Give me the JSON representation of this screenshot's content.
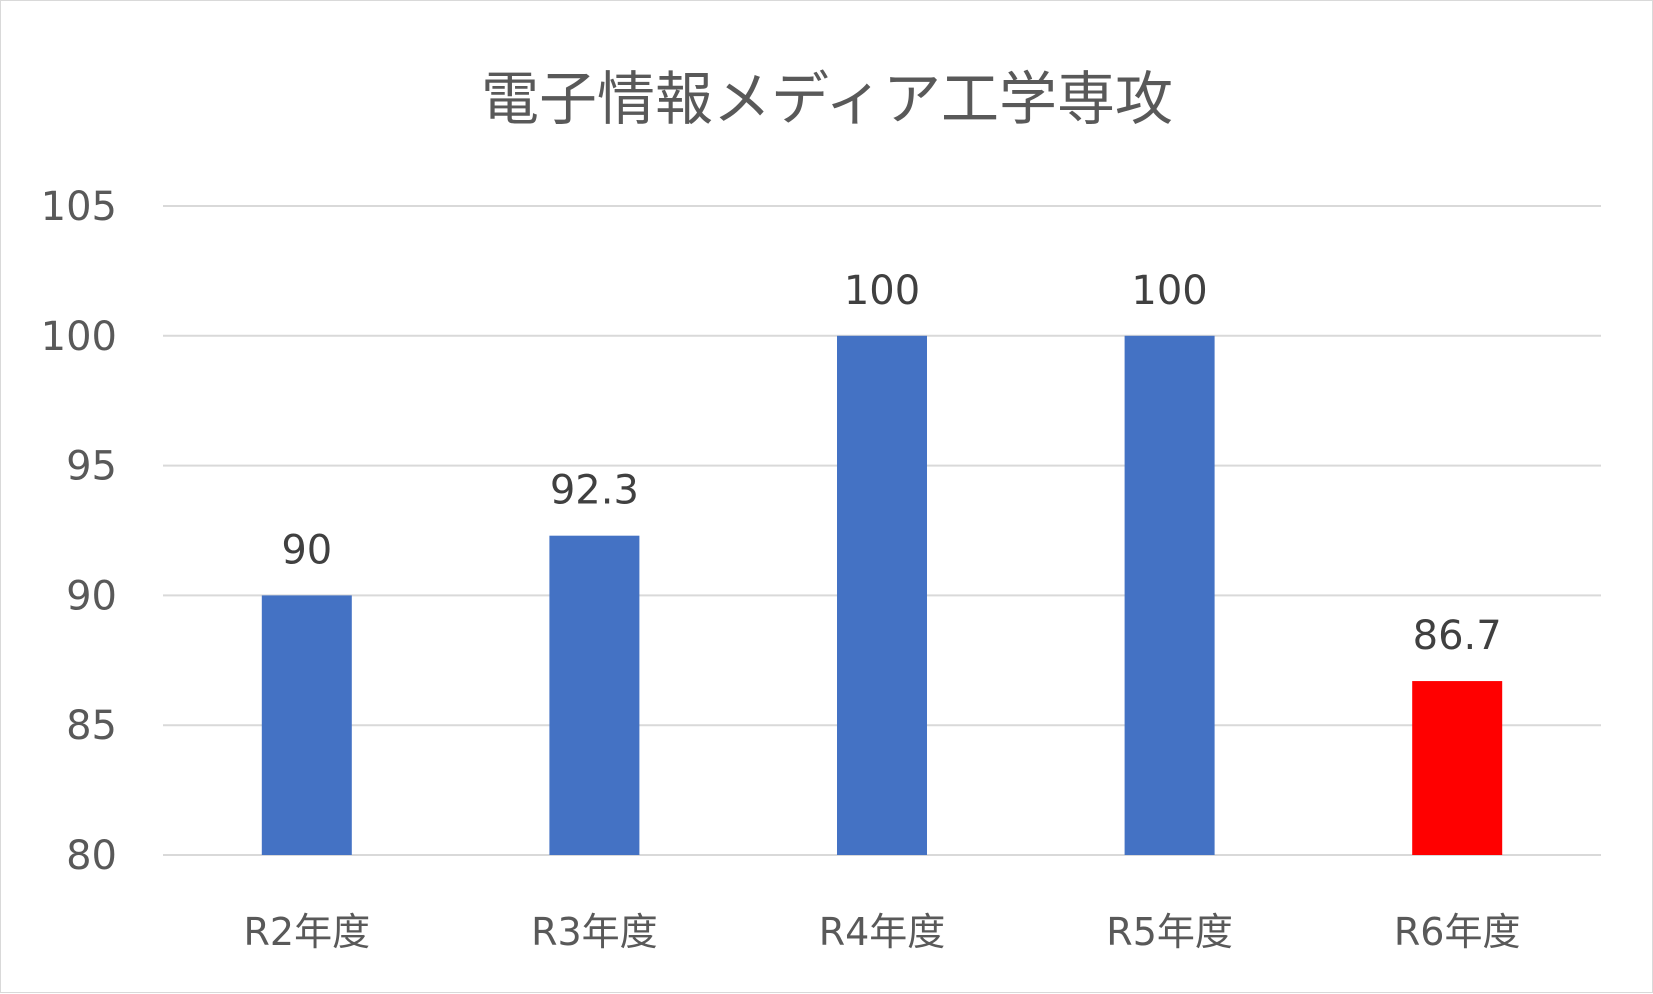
{
  "chart_data": {
    "type": "bar",
    "title": "電子情報メディア工学専攻",
    "xlabel": "",
    "ylabel": "",
    "categories": [
      "R2年度",
      "R3年度",
      "R4年度",
      "R5年度",
      "R6年度"
    ],
    "values": [
      90,
      92.3,
      100,
      100,
      86.7
    ],
    "data_labels": [
      "90",
      "92.3",
      "100",
      "100",
      "86.7"
    ],
    "ylim": [
      80,
      105
    ],
    "yticks": [
      80,
      85,
      90,
      95,
      100,
      105
    ],
    "grid": true,
    "legend": "none",
    "colors": {
      "bar": "#4472c4",
      "highlight": "#ff0000",
      "gridline": "#d9d9d9",
      "text": "#595959"
    },
    "highlight_index": 4
  }
}
